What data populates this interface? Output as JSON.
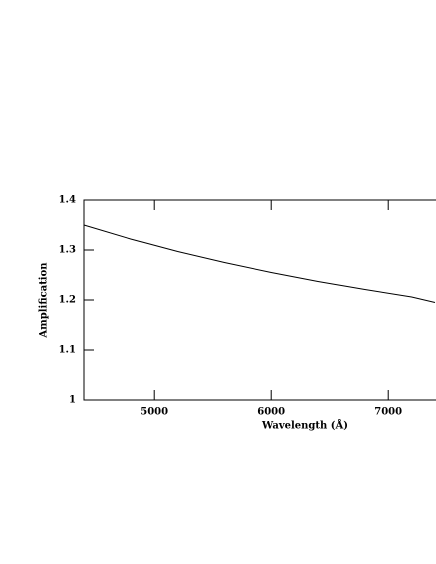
{
  "chart_data": {
    "type": "line",
    "x_label": "Wavelength (Å)",
    "y_label": "Amplification",
    "x": [
      4400,
      4800,
      5200,
      5600,
      6000,
      6400,
      6800,
      7200,
      7400
    ],
    "series": [
      {
        "name": "Amplification",
        "color": "#000000",
        "values": [
          1.35,
          1.322,
          1.297,
          1.275,
          1.255,
          1.237,
          1.221,
          1.206,
          1.195
        ]
      }
    ],
    "xlim": [
      4400,
      7400
    ],
    "xticks": [
      5000,
      6000,
      7000
    ],
    "ylim": [
      1,
      1.4
    ],
    "yticks": [
      1,
      1.1,
      1.2,
      1.3,
      1.4
    ]
  }
}
